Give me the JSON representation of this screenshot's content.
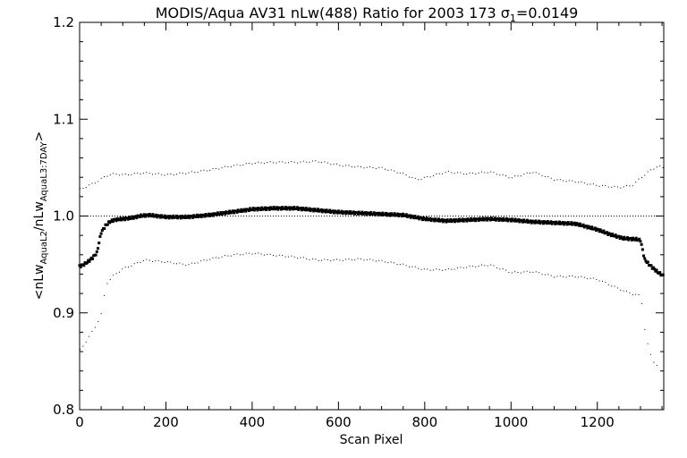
{
  "chart_data": {
    "type": "scatter",
    "title": {
      "main": "MODIS/Aqua AV31 nLw(488) Ratio for 2003 173 ",
      "sigma": "σ",
      "sigma_sub": "1",
      "sigma_value": "=0.0149"
    },
    "xlabel": "Scan Pixel",
    "ylabel": {
      "prefix": "<nLw",
      "sub1": "AquaL2",
      "mid": "/nLw",
      "sub2": "AquaL3:7DAY",
      "suffix": ">"
    },
    "xlim": [
      0,
      1354
    ],
    "ylim": [
      0.8,
      1.2
    ],
    "xticks": [
      0,
      200,
      400,
      600,
      800,
      1000,
      1200
    ],
    "xtick_labels": [
      "0",
      "200",
      "400",
      "600",
      "800",
      "1000",
      "1200"
    ],
    "yticks": [
      0.8,
      0.9,
      1.0,
      1.1,
      1.2
    ],
    "ytick_labels": [
      "0.8",
      "0.9",
      "1.0",
      "1.1",
      "1.2"
    ],
    "reference_line": 1.0,
    "colors": {
      "marks": "#000000",
      "background": "#ffffff"
    },
    "series": [
      {
        "role": "mean",
        "x": [
          0,
          10,
          20,
          30,
          40,
          50,
          60,
          70,
          80,
          100,
          120,
          140,
          160,
          180,
          200,
          250,
          300,
          350,
          400,
          450,
          500,
          550,
          600,
          650,
          700,
          750,
          800,
          850,
          900,
          950,
          1000,
          1050,
          1100,
          1150,
          1200,
          1230,
          1260,
          1290,
          1300,
          1310,
          1320,
          1330,
          1340,
          1354
        ],
        "y": [
          0.948,
          0.95,
          0.953,
          0.957,
          0.962,
          0.983,
          0.99,
          0.994,
          0.996,
          0.997,
          0.998,
          1.0,
          1.001,
          1.0,
          0.999,
          0.999,
          1.001,
          1.004,
          1.007,
          1.008,
          1.008,
          1.006,
          1.004,
          1.003,
          1.002,
          1.001,
          0.997,
          0.995,
          0.996,
          0.997,
          0.996,
          0.994,
          0.993,
          0.992,
          0.986,
          0.981,
          0.977,
          0.976,
          0.975,
          0.955,
          0.95,
          0.946,
          0.942,
          0.938
        ]
      },
      {
        "role": "upper",
        "x": [
          0,
          20,
          40,
          60,
          80,
          100,
          150,
          200,
          250,
          300,
          350,
          400,
          450,
          500,
          550,
          600,
          650,
          700,
          750,
          780,
          800,
          850,
          900,
          950,
          1000,
          1050,
          1100,
          1150,
          1200,
          1250,
          1280,
          1300,
          1320,
          1340,
          1354
        ],
        "y": [
          1.028,
          1.032,
          1.036,
          1.042,
          1.044,
          1.043,
          1.045,
          1.043,
          1.045,
          1.048,
          1.052,
          1.055,
          1.056,
          1.056,
          1.057,
          1.053,
          1.051,
          1.05,
          1.044,
          1.038,
          1.04,
          1.046,
          1.044,
          1.046,
          1.04,
          1.046,
          1.038,
          1.036,
          1.032,
          1.03,
          1.032,
          1.04,
          1.047,
          1.052,
          1.05
        ]
      },
      {
        "role": "lower",
        "x": [
          0,
          10,
          20,
          30,
          40,
          50,
          60,
          80,
          100,
          150,
          200,
          250,
          300,
          350,
          400,
          450,
          500,
          550,
          600,
          650,
          700,
          750,
          800,
          850,
          900,
          950,
          1000,
          1050,
          1100,
          1150,
          1200,
          1250,
          1280,
          1300,
          1310,
          1320,
          1330,
          1340
        ],
        "y": [
          0.862,
          0.868,
          0.875,
          0.882,
          0.89,
          0.9,
          0.93,
          0.94,
          0.946,
          0.955,
          0.953,
          0.95,
          0.956,
          0.96,
          0.962,
          0.96,
          0.958,
          0.955,
          0.955,
          0.956,
          0.954,
          0.95,
          0.945,
          0.945,
          0.948,
          0.95,
          0.942,
          0.943,
          0.938,
          0.938,
          0.935,
          0.925,
          0.92,
          0.918,
          0.88,
          0.86,
          0.85,
          0.845
        ]
      }
    ]
  }
}
